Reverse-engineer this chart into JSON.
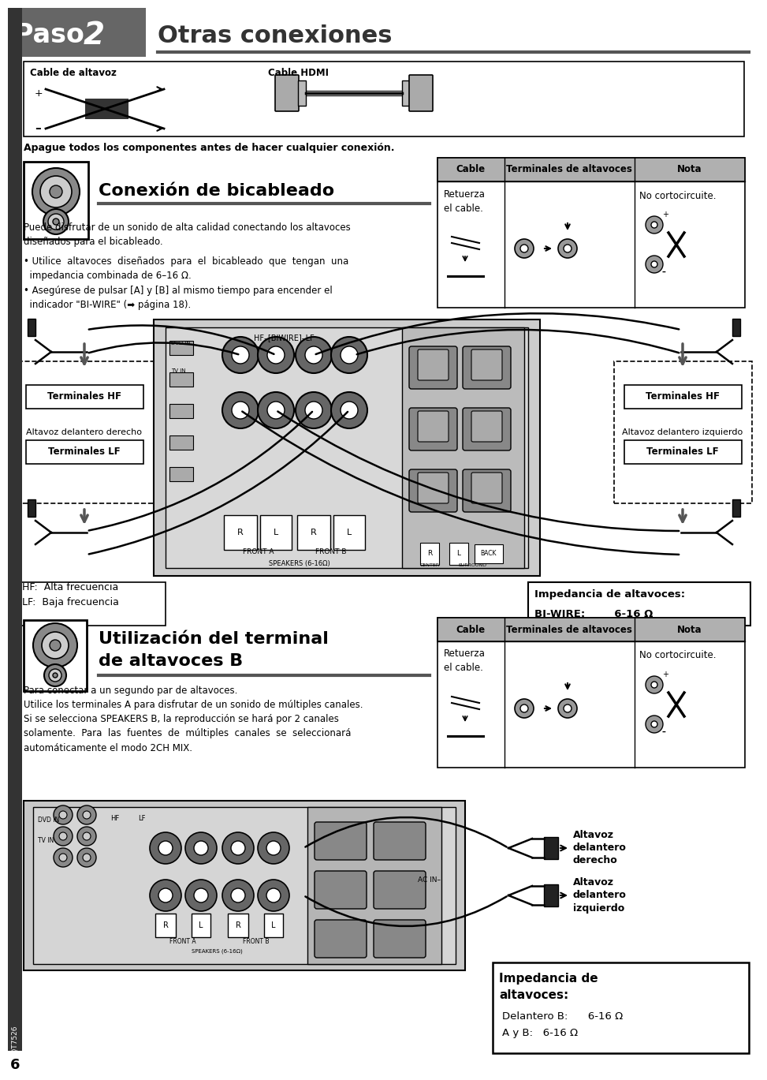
{
  "title_paso": "Paso 2",
  "title_otras": "Otras conexiones",
  "header_bg": "#666666",
  "page_bg": "#ffffff",
  "cable_altavoz_label": "Cable de altavoz",
  "cable_hdmi_label": "Cable HDMI",
  "warning_text": "Apague todos los componentes antes de hacer cualquier conexión.",
  "section1_title": "Conexión de bicableado",
  "section1_body1": "Puede disfrutar de un sonido de alta calidad conectando los altavoces\ndiseñados para el bicableado.",
  "section1_bullet1": "• Utilice  altavoces  diseñados  para  el  bicableado  que  tengan  una\n  impedancia combinada de 6–16 Ω.",
  "section1_bullet2": "• Asegúrese de pulsar [A] y [B] al mismo tiempo para encender el\n  indicador \"BI-WIRE\" (➡ página 18).",
  "table1_col1": "Cable",
  "table1_col2": "Terminales de altavoces",
  "table1_col3": "Nota",
  "table1_row1_c1": "Retuerza\nel cable.",
  "table1_row1_c3": "No cortocircuite.",
  "left_box_hf": "Terminales HF",
  "left_box_title": "Altavoz delantero derecho",
  "left_box_lf": "Terminales LF",
  "right_box_hf": "Terminales HF",
  "right_box_title": "Altavoz delantero izquierdo",
  "right_box_lf": "Terminales LF",
  "bottom_left_box1": "HF:  Alta frecuencia\nLF:  Baja frecuencia",
  "bottom_right_box1_line1": "Impedancia de altavoces:",
  "bottom_right_box1_line2": "BI-WIRE:        6-16 Ω",
  "section2_title_line1": "Utilización del terminal",
  "section2_title_line2": "de altavoces B",
  "section2_body_line1": "Para conectar a un segundo par de altavoces.",
  "section2_body_line2": "Utilice los terminales A para disfrutar de un sonido de múltiples canales.",
  "section2_body_line3": "Si se selecciona SPEAKERS B, la reproducción se hará por 2 canales",
  "section2_body_line4": "solamente.  Para  las  fuentes  de  múltiples  canales  se  seleccionará",
  "section2_body_line5": "automáticamente el modo 2CH MIX.",
  "table2_col1": "Cable",
  "table2_col2": "Terminales de altavoces",
  "table2_col3": "Nota",
  "table2_row1_c1": "Retuerza\nel cable.",
  "table2_row1_c3": "No cortocircuite.",
  "right2_label1": "Altavoz\ndelantero\nderecho",
  "right2_label2": "Altavoz\ndelantero\nizquierdo",
  "bottom_right_box2_line1": "Impedancia de",
  "bottom_right_box2_line2": "altavoces:",
  "bottom_right_box2_line3": "Delantero B:      6-16 Ω",
  "bottom_right_box2_line4": "A y B:   6-16 Ω",
  "page_number": "6",
  "side_text": "RQT7526",
  "table_header_bg": "#b0b0b0",
  "dark_gray": "#444444"
}
